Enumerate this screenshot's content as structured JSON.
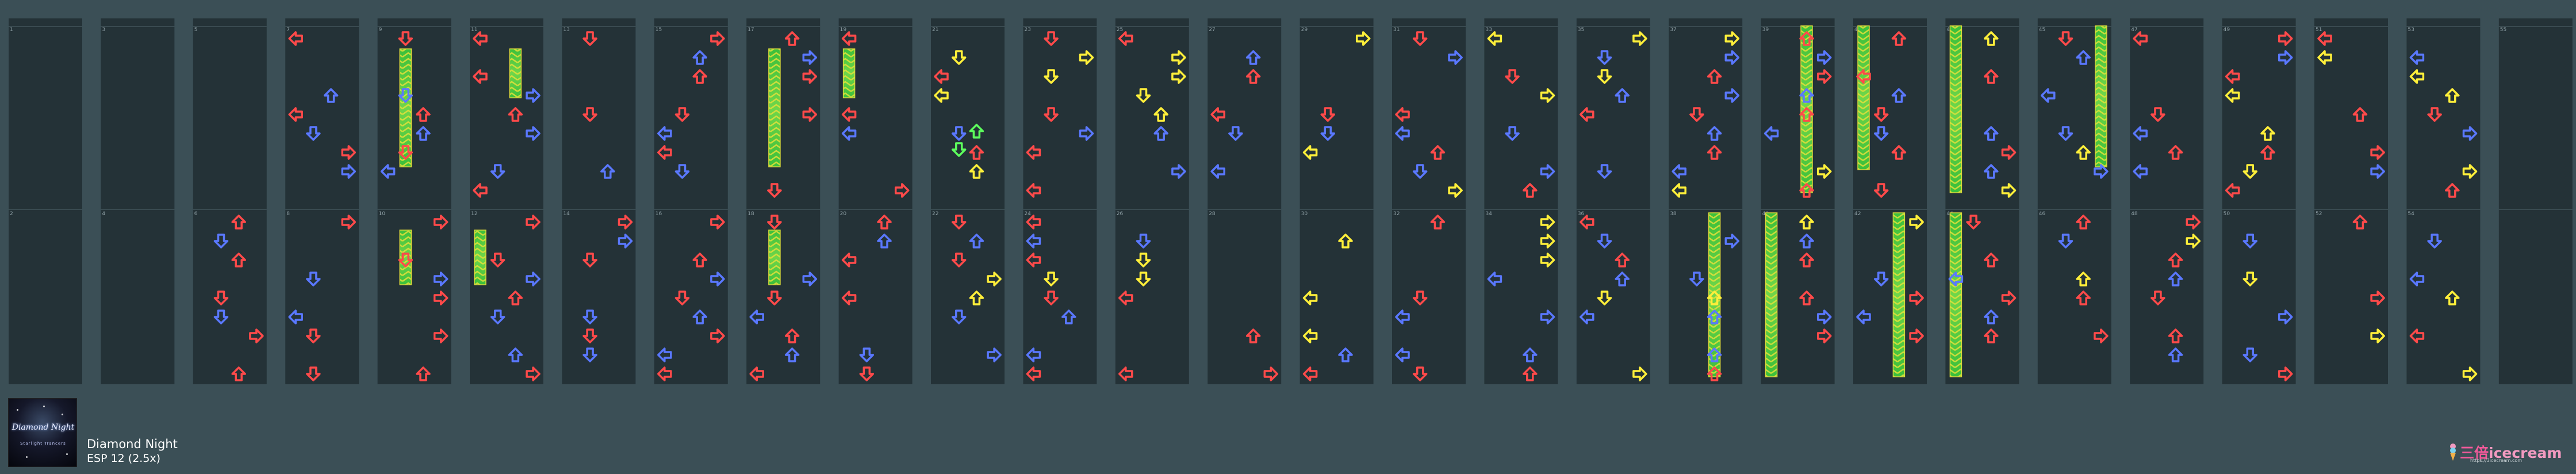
{
  "song": {
    "title": "Diamond Night",
    "difficulty": "ESP 12 (2.5x)",
    "jacket_title": "Diamond Night",
    "jacket_artist": "Starlight Trancers"
  },
  "brand": {
    "name_cjk": "三倍",
    "name_en": "icecream",
    "url": "https://3icecream.com"
  },
  "colors": {
    "background": "#3b4f56",
    "lane": "#243237",
    "red": "#ff4a4a",
    "blue": "#5a78ff",
    "yellow": "#ffef3a",
    "green": "#5dff5d",
    "freeze_green": "#3bbf3b",
    "freeze_yellow": "#e3e03a"
  },
  "chart": {
    "measure_numbers": [
      1,
      2,
      3,
      4,
      5,
      6,
      7,
      8,
      9,
      10,
      11,
      12,
      13,
      14,
      15,
      16,
      17,
      18,
      19,
      20,
      21,
      22,
      23,
      24,
      25,
      26,
      27,
      28,
      29,
      30,
      31,
      32,
      33,
      34,
      35,
      36,
      37,
      38,
      39,
      40,
      41,
      42,
      43,
      44,
      45,
      46,
      47,
      48,
      49,
      50,
      51,
      52,
      53,
      54,
      55
    ],
    "freeze_count": 18
  }
}
